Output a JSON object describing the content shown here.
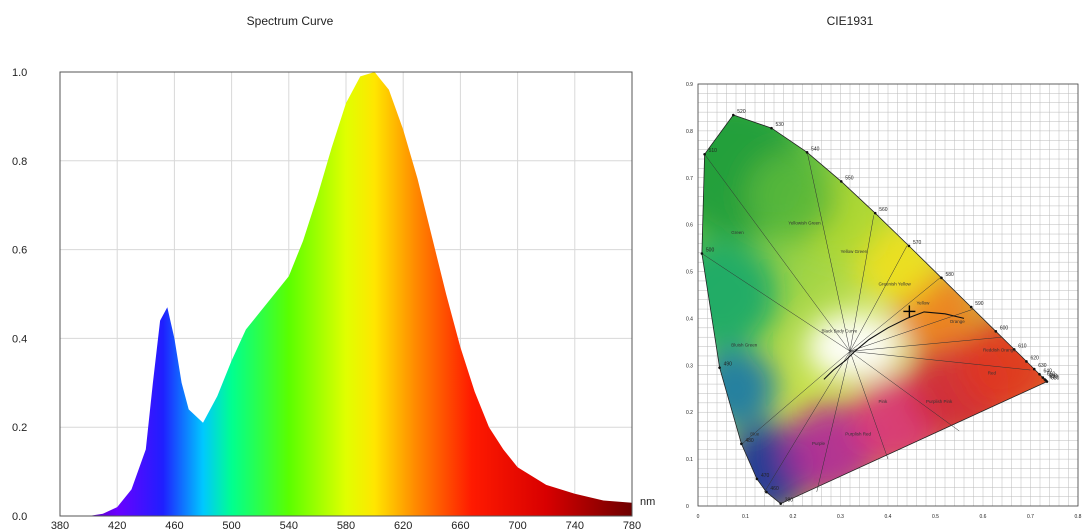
{
  "chart_data": [
    {
      "type": "area",
      "title": "Spectrum Curve",
      "xlabel": "nm",
      "ylabel": "",
      "xlim": [
        380,
        780
      ],
      "ylim": [
        0,
        1.0
      ],
      "x_ticks": [
        "380",
        "420",
        "460",
        "500",
        "540",
        "580",
        "620",
        "660",
        "700",
        "740",
        "780"
      ],
      "y_ticks": [
        "0.0",
        "0.2",
        "0.4",
        "0.6",
        "0.8",
        "1.0"
      ],
      "grid": true,
      "series": [
        {
          "x": [
            380,
            400,
            410,
            420,
            430,
            440,
            445,
            450,
            455,
            460,
            465,
            470,
            480,
            490,
            500,
            510,
            520,
            530,
            540,
            550,
            560,
            570,
            580,
            590,
            600,
            610,
            620,
            630,
            640,
            650,
            660,
            670,
            680,
            690,
            700,
            720,
            740,
            760,
            780
          ],
          "values": [
            0.0,
            0.0,
            0.005,
            0.02,
            0.06,
            0.15,
            0.3,
            0.44,
            0.47,
            0.4,
            0.3,
            0.24,
            0.21,
            0.27,
            0.35,
            0.42,
            0.46,
            0.5,
            0.54,
            0.62,
            0.72,
            0.83,
            0.93,
            0.99,
            1.0,
            0.96,
            0.87,
            0.76,
            0.63,
            0.5,
            0.38,
            0.28,
            0.2,
            0.15,
            0.11,
            0.07,
            0.05,
            0.035,
            0.03
          ]
        }
      ]
    },
    {
      "type": "scatter",
      "title": "CIE1931",
      "xlim": [
        0,
        0.8
      ],
      "ylim": [
        0,
        0.9
      ],
      "x_ticks": [
        "0",
        "0.1",
        "0.2",
        "0.3",
        "0.4",
        "0.5",
        "0.6",
        "0.7",
        "0.8"
      ],
      "y_ticks": [
        "0",
        "0.1",
        "0.2",
        "0.3",
        "0.4",
        "0.5",
        "0.6",
        "0.7",
        "0.8",
        "0.9"
      ],
      "grid": true,
      "locus": [
        {
          "nm": "380",
          "x": 0.1741,
          "y": 0.005
        },
        {
          "nm": "460",
          "x": 0.144,
          "y": 0.0297
        },
        {
          "nm": "470",
          "x": 0.1241,
          "y": 0.0578
        },
        {
          "nm": "480",
          "x": 0.0913,
          "y": 0.1327
        },
        {
          "nm": "490",
          "x": 0.0454,
          "y": 0.295
        },
        {
          "nm": "500",
          "x": 0.0082,
          "y": 0.5384
        },
        {
          "nm": "510",
          "x": 0.0139,
          "y": 0.7502
        },
        {
          "nm": "520",
          "x": 0.0743,
          "y": 0.8338
        },
        {
          "nm": "530",
          "x": 0.1547,
          "y": 0.8059
        },
        {
          "nm": "540",
          "x": 0.2296,
          "y": 0.7543
        },
        {
          "nm": "550",
          "x": 0.3016,
          "y": 0.6923
        },
        {
          "nm": "560",
          "x": 0.3731,
          "y": 0.6245
        },
        {
          "nm": "570",
          "x": 0.4441,
          "y": 0.5547
        },
        {
          "nm": "580",
          "x": 0.5125,
          "y": 0.4866
        },
        {
          "nm": "590",
          "x": 0.5752,
          "y": 0.4242
        },
        {
          "nm": "600",
          "x": 0.627,
          "y": 0.3725
        },
        {
          "nm": "610",
          "x": 0.6658,
          "y": 0.334
        },
        {
          "nm": "620",
          "x": 0.6915,
          "y": 0.3083
        },
        {
          "nm": "630",
          "x": 0.7079,
          "y": 0.292
        },
        {
          "nm": "640",
          "x": 0.719,
          "y": 0.2809
        },
        {
          "nm": "650",
          "x": 0.726,
          "y": 0.274
        },
        {
          "nm": "660",
          "x": 0.73,
          "y": 0.27
        },
        {
          "nm": "670",
          "x": 0.732,
          "y": 0.268
        },
        {
          "nm": "680",
          "x": 0.7347,
          "y": 0.2653
        }
      ],
      "planckian": [
        [
          0.56,
          0.4
        ],
        [
          0.52,
          0.41
        ],
        [
          0.476,
          0.414
        ],
        [
          0.44,
          0.4
        ],
        [
          0.4,
          0.38
        ],
        [
          0.36,
          0.355
        ],
        [
          0.33,
          0.33
        ],
        [
          0.31,
          0.31
        ],
        [
          0.285,
          0.29
        ],
        [
          0.265,
          0.27
        ]
      ],
      "point": {
        "x": 0.445,
        "y": 0.415
      },
      "regions": [
        "Green",
        "Yellowish Green",
        "Yellow Green",
        "Greenish Yellow",
        "Yellow",
        "Orange",
        "Reddish Orange",
        "Red",
        "Purplish Pink",
        "Pink",
        "Purplish Red",
        "Bluish Green",
        "Blue",
        "Purple",
        "Black Body Curve"
      ]
    }
  ]
}
